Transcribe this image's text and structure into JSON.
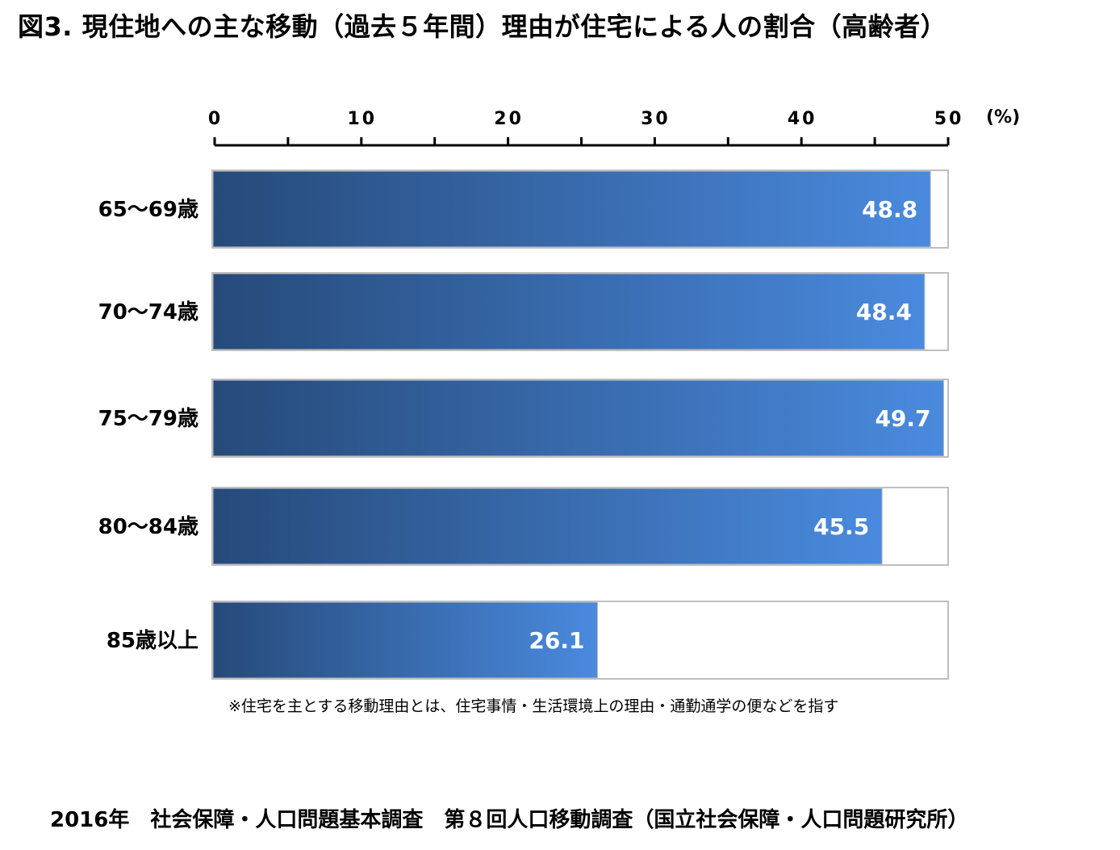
{
  "title": "図3. 現住地への主な移動（過去５年間）理由が住宅による人の割合（高齢者）",
  "note": "※住宅を主とする移動理由とは、住宅事情・生活環境上の理由・通勤通学の便などを指す",
  "source": "2016年　社会保障・人口問題基本調査　第８回人口移動調査（国立社会保障・人口問題研究所）",
  "chart_data": {
    "type": "bar",
    "orientation": "horizontal",
    "categories": [
      "65～69歳",
      "70～74歳",
      "75～79歳",
      "80～84歳",
      "85歳以上"
    ],
    "values": [
      48.8,
      48.4,
      49.7,
      45.5,
      26.1
    ],
    "xlim": [
      0,
      50
    ],
    "xticks": [
      0,
      10,
      20,
      30,
      40,
      50
    ],
    "unit_label": "(%)",
    "axis_position": "top",
    "grid": false,
    "colors": {
      "bar_start": "#264a7a",
      "bar_end": "#4a8ade",
      "bar_outline": "#bfbfbf",
      "value_text": "#ffffff"
    }
  }
}
